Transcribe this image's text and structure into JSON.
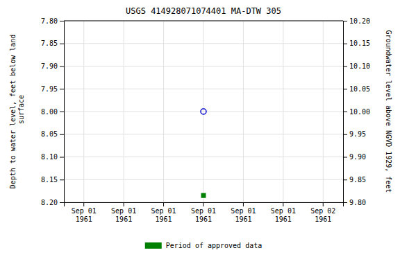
{
  "chart_data": {
    "type": "scatter",
    "title": "USGS 414928071074401 MA-DTW  305",
    "ylabel": "Depth to water level, feet below land\n surface",
    "y2label": "Groundwater level above NGVD 1929, feet",
    "categories": [
      "Sep 01\n1961",
      "Sep 01\n1961",
      "Sep 01\n1961",
      "Sep 01\n1961",
      "Sep 01\n1961",
      "Sep 01\n1961",
      "Sep 02\n1961"
    ],
    "series": [
      {
        "color": "#0000cc",
        "marker": "circle-open",
        "values": [
          null,
          null,
          null,
          8,
          null,
          null,
          null
        ]
      },
      {
        "name": "Period of approved data",
        "color": "#008000",
        "marker": "square",
        "values": [
          null,
          null,
          null,
          8.185,
          null,
          null,
          null
        ]
      }
    ],
    "ylim": [
      8.2,
      7.8
    ],
    "yticks": [
      {
        "value": 7.8,
        "label": "7.80"
      },
      7.85,
      {
        "value": 7.9,
        "label": "7.90"
      },
      7.95,
      {
        "value": 8,
        "label": "8.00"
      },
      8.05,
      {
        "value": 8.1,
        "label": "8.10"
      },
      8.15,
      {
        "value": 8.2,
        "label": "8.20"
      }
    ],
    "y2lim": [
      9.8,
      10.2
    ],
    "y2ticks": [
      {
        "value": 9.8,
        "label": "9.80"
      },
      9.85,
      {
        "value": 9.9,
        "label": "9.90"
      },
      9.95,
      {
        "value": 10,
        "label": "10.00"
      },
      10.05,
      {
        "value": 10.1,
        "label": "10.10"
      },
      10.15,
      {
        "value": 10.2,
        "label": "10.20"
      }
    ],
    "grid": true,
    "legend": "bottom"
  }
}
